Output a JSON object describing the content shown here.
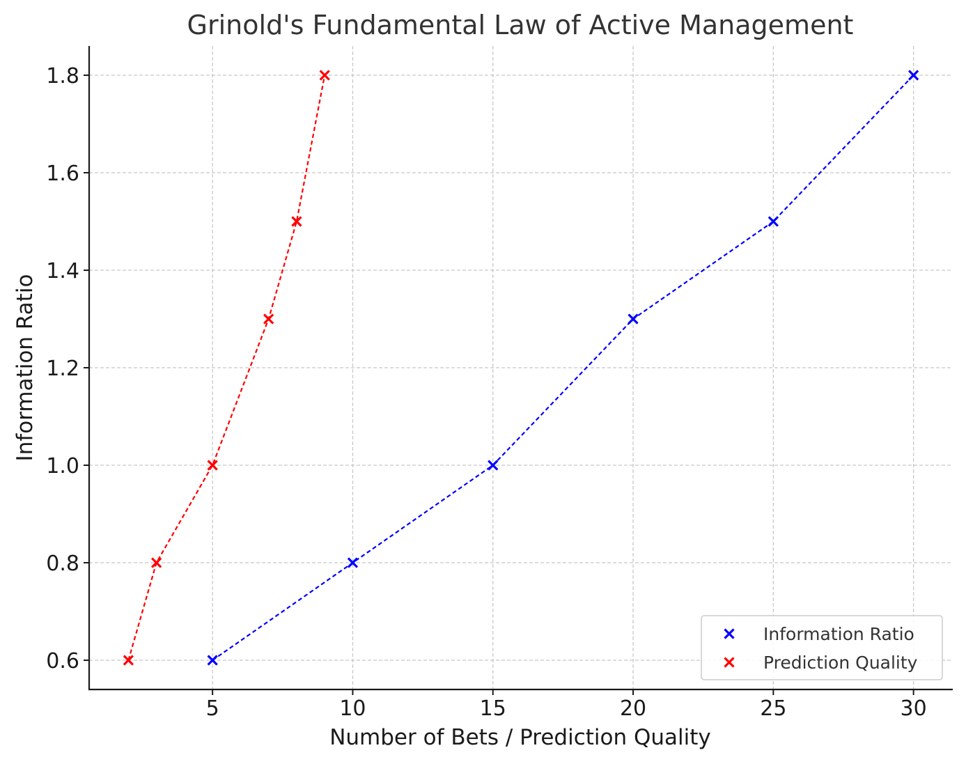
{
  "chart_data": {
    "type": "line",
    "title": "Grinold's Fundamental Law of Active Management",
    "xlabel": "Number of Bets / Prediction Quality",
    "ylabel": "Information Ratio",
    "xlim": [
      0.6,
      31.4
    ],
    "ylim": [
      0.54,
      1.86
    ],
    "xticks": [
      5,
      10,
      15,
      20,
      25,
      30
    ],
    "yticks": [
      0.6,
      0.8,
      1.0,
      1.2,
      1.4,
      1.6,
      1.8
    ],
    "ytick_labels": [
      "0.6",
      "0.8",
      "1.0",
      "1.2",
      "1.4",
      "1.6",
      "1.8"
    ],
    "grid": true,
    "legend_position": "bottom-right",
    "series": [
      {
        "name": "Information Ratio",
        "color": "#0000ff",
        "marker": "x",
        "line_style": "dashed",
        "x": [
          5,
          10,
          15,
          20,
          25,
          30
        ],
        "y": [
          0.6,
          0.8,
          1.0,
          1.3,
          1.5,
          1.8
        ]
      },
      {
        "name": "Prediction Quality",
        "color": "#ff0000",
        "marker": "x",
        "line_style": "dashed",
        "x": [
          2,
          3,
          5,
          7,
          8,
          9
        ],
        "y": [
          0.6,
          0.8,
          1.0,
          1.3,
          1.5,
          1.8
        ]
      }
    ]
  }
}
